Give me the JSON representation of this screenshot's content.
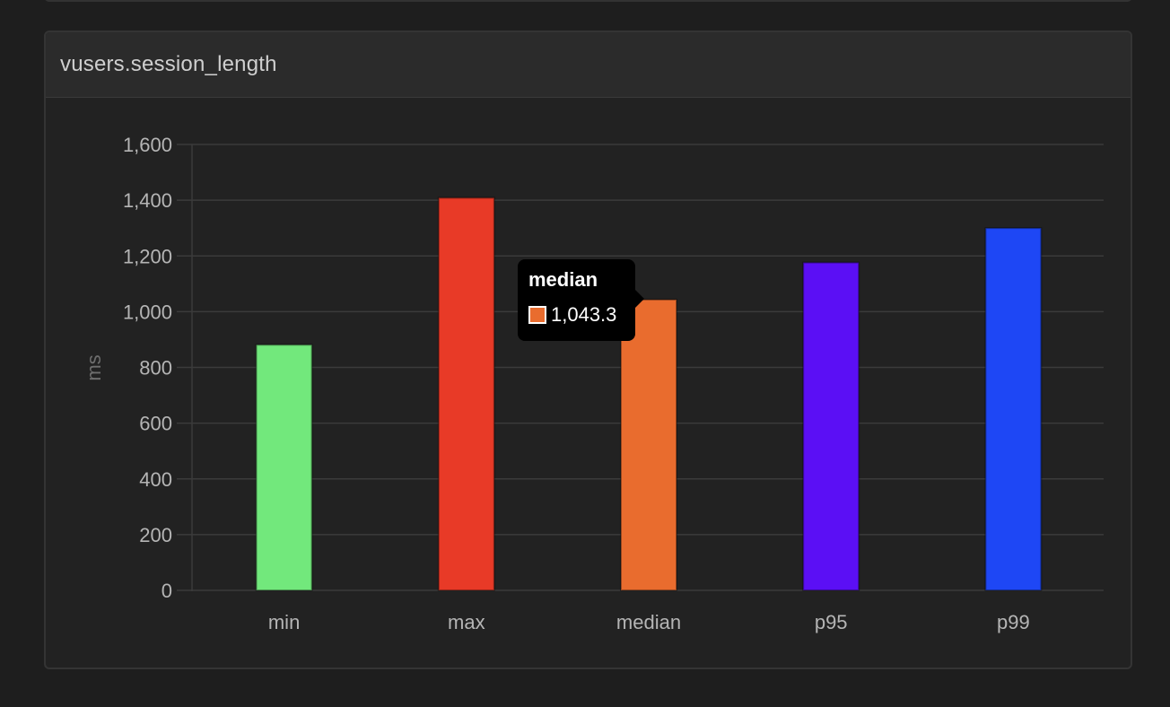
{
  "panel": {
    "title": "vusers.session_length"
  },
  "chart_data": {
    "type": "bar",
    "categories": [
      "min",
      "max",
      "median",
      "p95",
      "p99"
    ],
    "values": [
      881.1,
      1408.6,
      1043.3,
      1176.4,
      1300.1
    ],
    "colors": [
      "#72e87c",
      "#e83a27",
      "#e96c2e",
      "#5b0ff5",
      "#1e47f5"
    ],
    "ylabel": "ms",
    "ylim": [
      0,
      1600
    ],
    "yticks": [
      0,
      200,
      400,
      600,
      800,
      1000,
      1200,
      1400,
      1600
    ],
    "ytick_labels": [
      "0",
      "200",
      "400",
      "600",
      "800",
      "1,000",
      "1,200",
      "1,400",
      "1,600"
    ],
    "grid": true,
    "legend": "none"
  },
  "tooltip": {
    "title": "median",
    "value_label": "1,043.3",
    "swatch_color": "#e96c2e"
  }
}
